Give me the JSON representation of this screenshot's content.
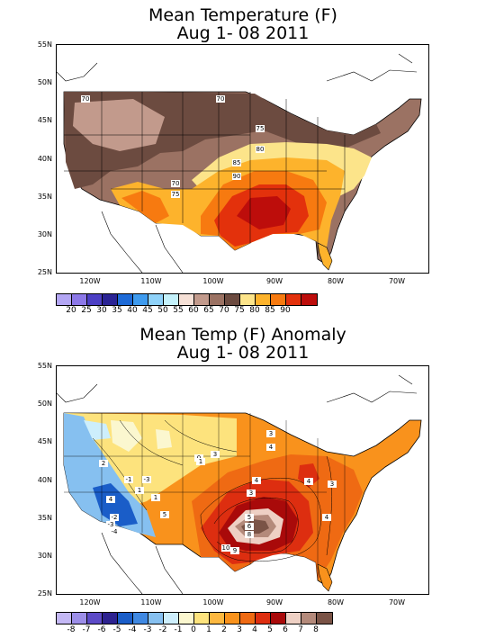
{
  "top": {
    "title_line1": "Mean Temperature (F)",
    "title_line2": "Aug 1- 08 2011",
    "lat_labels": [
      "55N",
      "50N",
      "45N",
      "40N",
      "35N",
      "30N",
      "25N"
    ],
    "lon_labels": [
      "120W",
      "110W",
      "100W",
      "90W",
      "80W",
      "70W"
    ],
    "colorbar": {
      "colors": [
        "#b3a6f4",
        "#8c78e8",
        "#4c3fc4",
        "#2a2394",
        "#1d6ad7",
        "#3e9bef",
        "#8fd2f9",
        "#c4f1fb",
        "#f5e0d6",
        "#c29a8c",
        "#9b7263",
        "#6c4b40",
        "#fce48a",
        "#fdb32c",
        "#f77a10",
        "#e3310c",
        "#bd0d0b"
      ],
      "labels": [
        "20",
        "25",
        "30",
        "35",
        "40",
        "45",
        "50",
        "55",
        "60",
        "65",
        "70",
        "75",
        "80",
        "85",
        "90"
      ]
    },
    "contour_labels": [
      "70",
      "70",
      "75",
      "80",
      "85",
      "90",
      "70",
      "75"
    ]
  },
  "bottom": {
    "title_line1": "Mean Temp (F) Anomaly",
    "title_line2": "Aug 1- 08 2011",
    "lat_labels": [
      "55N",
      "50N",
      "45N",
      "40N",
      "35N",
      "30N",
      "25N"
    ],
    "lon_labels": [
      "120W",
      "110W",
      "100W",
      "90W",
      "80W",
      "70W"
    ],
    "colorbar": {
      "colors": [
        "#c4b8f5",
        "#9c8ee8",
        "#5c4ac7",
        "#2d2290",
        "#1a5dc8",
        "#3f88e2",
        "#86c0f0",
        "#cdeefc",
        "#fbf7cf",
        "#fde37d",
        "#fdb840",
        "#f9921c",
        "#ef6a13",
        "#dd2e10",
        "#a90a0a",
        "#eed0c4",
        "#b48a7b",
        "#7a5346"
      ],
      "labels": [
        "-8",
        "-7",
        "-6",
        "-5",
        "-4",
        "-3",
        "-2",
        "-1",
        "0",
        "1",
        "2",
        "3",
        "4",
        "5",
        "6",
        "7",
        "8"
      ]
    },
    "contour_labels": [
      "3",
      "4",
      "3",
      "4",
      "4",
      "3",
      "4",
      "3",
      "5",
      "6",
      "8",
      "9",
      "10",
      "5",
      "4",
      "-1",
      "-2",
      "-3",
      "-4",
      "-3",
      "1",
      "2",
      "0",
      "1",
      "1"
    ]
  }
}
